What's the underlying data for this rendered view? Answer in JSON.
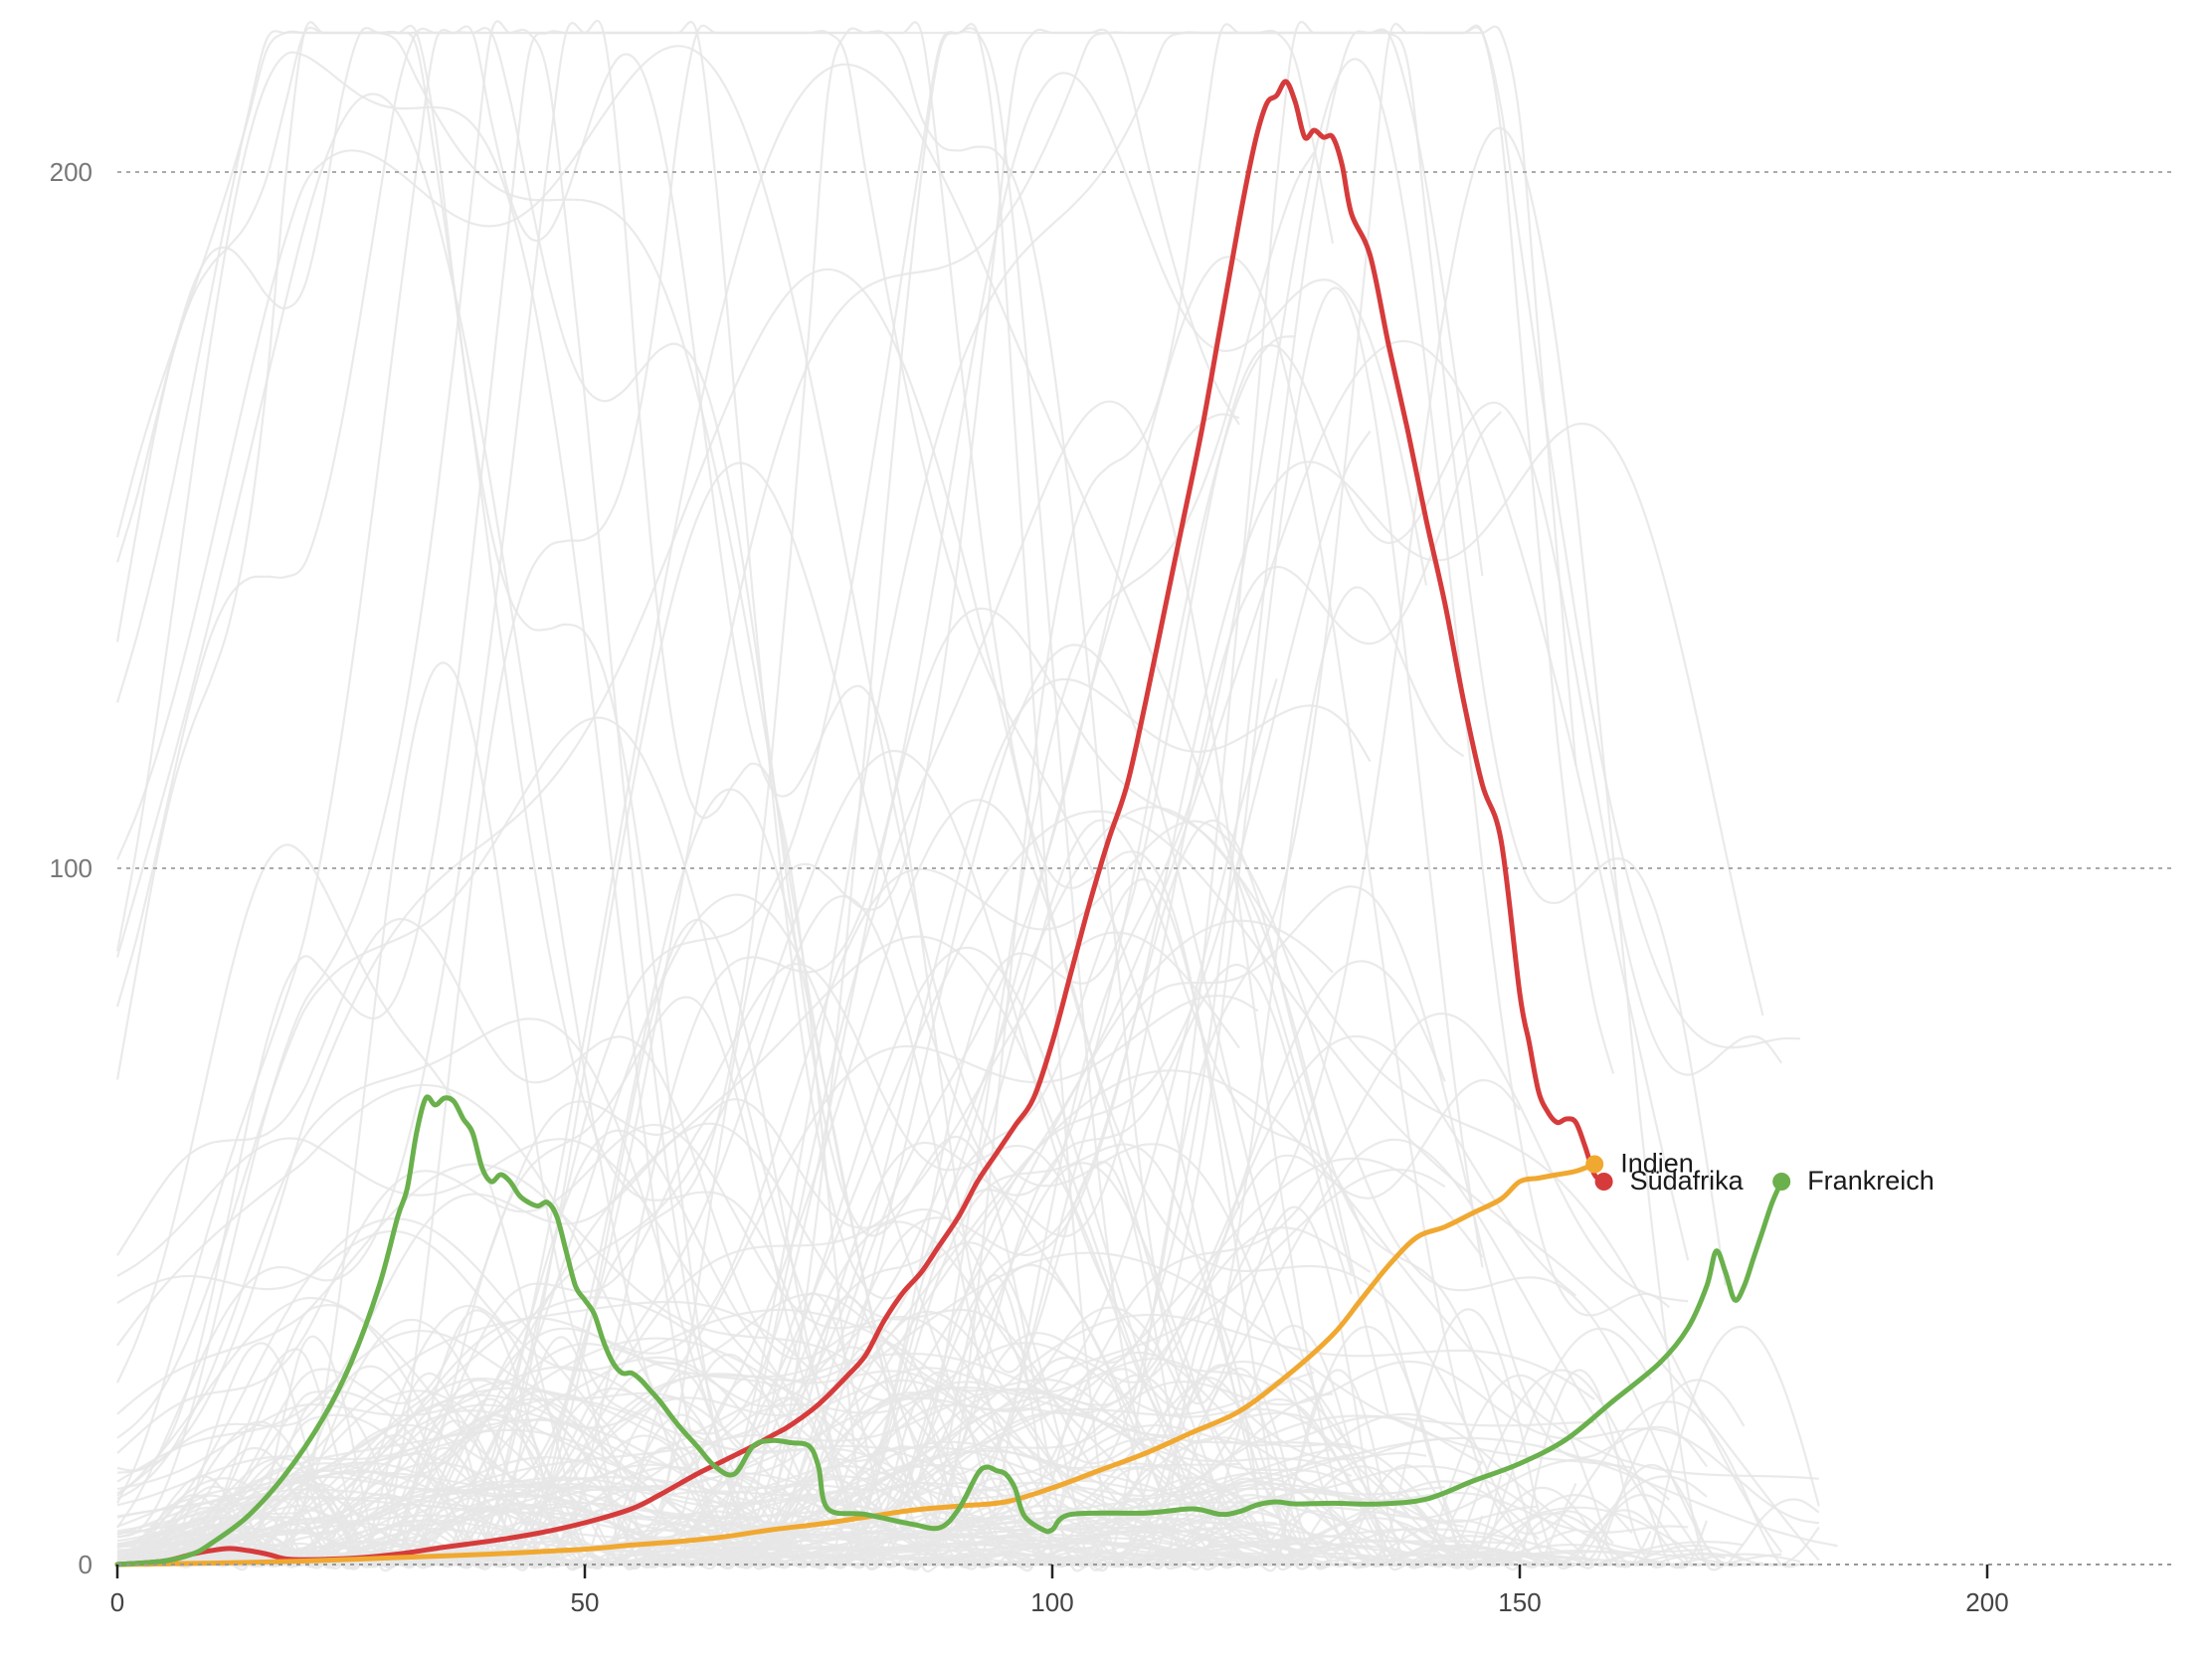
{
  "chart_data": {
    "type": "line",
    "title": "",
    "xlabel": "",
    "ylabel": "",
    "xlim": [
      0,
      220
    ],
    "ylim": [
      0,
      220
    ],
    "grid": "horizontal dotted",
    "x_ticks": [
      "0",
      "50",
      "100",
      "150",
      "200"
    ],
    "y_ticks": [
      "0",
      "100",
      "200"
    ],
    "background_color": "#e6e6e6",
    "highlighted_series": [
      {
        "name": "Südafrika",
        "color": "#d63b3b",
        "points": [
          [
            0,
            0
          ],
          [
            5,
            0.5
          ],
          [
            8,
            1.5
          ],
          [
            10,
            2
          ],
          [
            12,
            2.3
          ],
          [
            14,
            2
          ],
          [
            16,
            1.5
          ],
          [
            18,
            0.8
          ],
          [
            20,
            0.7
          ],
          [
            25,
            0.9
          ],
          [
            30,
            1.5
          ],
          [
            35,
            2.5
          ],
          [
            40,
            3.4
          ],
          [
            45,
            4.5
          ],
          [
            50,
            6
          ],
          [
            55,
            8
          ],
          [
            58,
            10
          ],
          [
            62,
            13
          ],
          [
            65,
            15
          ],
          [
            68,
            17
          ],
          [
            70,
            18.5
          ],
          [
            72,
            20
          ],
          [
            75,
            23
          ],
          [
            78,
            27
          ],
          [
            80,
            30
          ],
          [
            82,
            35
          ],
          [
            84,
            39
          ],
          [
            86,
            42
          ],
          [
            88,
            46
          ],
          [
            90,
            50
          ],
          [
            92,
            55
          ],
          [
            94,
            59
          ],
          [
            96,
            63
          ],
          [
            98,
            67
          ],
          [
            100,
            75
          ],
          [
            102,
            85
          ],
          [
            104,
            95
          ],
          [
            106,
            104
          ],
          [
            108,
            112
          ],
          [
            110,
            124
          ],
          [
            112,
            137
          ],
          [
            114,
            150
          ],
          [
            116,
            163
          ],
          [
            118,
            178
          ],
          [
            120,
            193
          ],
          [
            121,
            200
          ],
          [
            122,
            206
          ],
          [
            123,
            210
          ],
          [
            124,
            211
          ],
          [
            125,
            213
          ],
          [
            126,
            210
          ],
          [
            127,
            205
          ],
          [
            128,
            206
          ],
          [
            129,
            205
          ],
          [
            130,
            205
          ],
          [
            131,
            201
          ],
          [
            132,
            194
          ],
          [
            134,
            188
          ],
          [
            136,
            175
          ],
          [
            138,
            163
          ],
          [
            140,
            150
          ],
          [
            142,
            138
          ],
          [
            144,
            124
          ],
          [
            146,
            112
          ],
          [
            148,
            104
          ],
          [
            150,
            82
          ],
          [
            151,
            75
          ],
          [
            152,
            68
          ],
          [
            153,
            65
          ],
          [
            154,
            63.5
          ],
          [
            155,
            64
          ],
          [
            156,
            63.5
          ],
          [
            157,
            60
          ],
          [
            158,
            56
          ],
          [
            159,
            55
          ]
        ]
      },
      {
        "name": "Indien",
        "color": "#f0a830",
        "points": [
          [
            0,
            0
          ],
          [
            10,
            0.2
          ],
          [
            20,
            0.5
          ],
          [
            30,
            1
          ],
          [
            40,
            1.5
          ],
          [
            50,
            2.2
          ],
          [
            55,
            2.8
          ],
          [
            60,
            3.3
          ],
          [
            65,
            4
          ],
          [
            70,
            5
          ],
          [
            75,
            5.8
          ],
          [
            80,
            6.8
          ],
          [
            85,
            7.8
          ],
          [
            90,
            8.4
          ],
          [
            95,
            9
          ],
          [
            100,
            11
          ],
          [
            105,
            13.5
          ],
          [
            110,
            16
          ],
          [
            115,
            19
          ],
          [
            120,
            22
          ],
          [
            125,
            27
          ],
          [
            130,
            33
          ],
          [
            133,
            38
          ],
          [
            136,
            43
          ],
          [
            139,
            47
          ],
          [
            142,
            48.5
          ],
          [
            145,
            50.5
          ],
          [
            148,
            52.5
          ],
          [
            150,
            55
          ],
          [
            152,
            55.5
          ],
          [
            154,
            56
          ],
          [
            156,
            56.5
          ],
          [
            158,
            57.5
          ],
          [
            160,
            48
          ]
        ]
      },
      {
        "name": "Frankreich",
        "color": "#6ab04c",
        "points": [
          [
            0,
            0
          ],
          [
            5,
            0.5
          ],
          [
            8,
            1.5
          ],
          [
            10,
            3
          ],
          [
            14,
            7
          ],
          [
            18,
            13
          ],
          [
            22,
            21
          ],
          [
            25,
            29
          ],
          [
            28,
            40
          ],
          [
            30,
            50
          ],
          [
            31,
            54
          ],
          [
            32,
            62
          ],
          [
            33,
            67
          ],
          [
            34,
            66
          ],
          [
            35,
            67
          ],
          [
            36,
            66.5
          ],
          [
            37,
            64
          ],
          [
            38,
            62
          ],
          [
            39,
            57
          ],
          [
            40,
            55
          ],
          [
            41,
            56
          ],
          [
            42,
            55
          ],
          [
            43,
            53
          ],
          [
            44,
            52
          ],
          [
            45,
            51.5
          ],
          [
            46,
            52
          ],
          [
            47,
            50
          ],
          [
            48,
            45
          ],
          [
            49,
            40
          ],
          [
            50,
            38
          ],
          [
            51,
            36
          ],
          [
            52,
            32
          ],
          [
            53,
            29
          ],
          [
            54,
            27.5
          ],
          [
            55,
            27.5
          ],
          [
            56,
            26.5
          ],
          [
            57,
            25
          ],
          [
            58,
            23.5
          ],
          [
            60,
            20
          ],
          [
            62,
            17
          ],
          [
            64,
            14
          ],
          [
            66,
            13
          ],
          [
            68,
            17
          ],
          [
            70,
            17.8
          ],
          [
            72,
            17.5
          ],
          [
            74,
            17
          ],
          [
            75,
            14
          ],
          [
            76,
            8
          ],
          [
            80,
            7.2
          ],
          [
            85,
            5.8
          ],
          [
            88,
            5.3
          ],
          [
            90,
            8
          ],
          [
            92,
            13
          ],
          [
            93,
            14
          ],
          [
            94,
            13.5
          ],
          [
            95,
            13
          ],
          [
            96,
            11
          ],
          [
            97,
            7
          ],
          [
            99,
            5
          ],
          [
            100,
            5
          ],
          [
            102,
            7.2
          ],
          [
            110,
            7.4
          ],
          [
            115,
            8
          ],
          [
            118,
            7.2
          ],
          [
            120,
            7.6
          ],
          [
            122,
            8.6
          ],
          [
            124,
            9
          ],
          [
            126,
            8.7
          ],
          [
            130,
            8.8
          ],
          [
            135,
            8.7
          ],
          [
            140,
            9.4
          ],
          [
            145,
            12
          ],
          [
            150,
            14.5
          ],
          [
            155,
            18
          ],
          [
            160,
            23.5
          ],
          [
            165,
            29
          ],
          [
            168,
            34
          ],
          [
            170,
            40
          ],
          [
            171,
            45
          ],
          [
            172,
            42
          ],
          [
            173,
            38
          ],
          [
            174,
            40
          ],
          [
            175,
            44
          ],
          [
            176,
            48
          ],
          [
            177,
            52
          ],
          [
            178,
            55
          ]
        ]
      }
    ]
  }
}
